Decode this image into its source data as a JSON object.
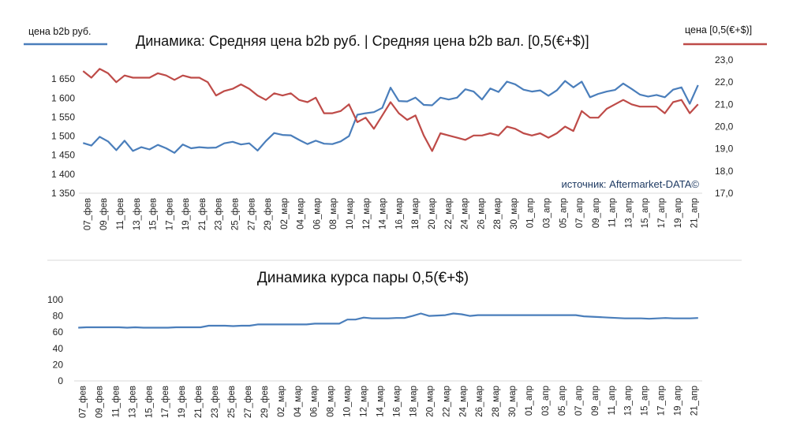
{
  "top": {
    "title": "Динамика: Средняя цена b2b руб.   | Средняя цена b2b вал. [0,5(€+$)]",
    "legend_left": "цена b2b руб.",
    "legend_right": "цена [0,5(€+$)]",
    "source": "источник: Aftermarket-DATA©"
  },
  "bottom": {
    "title": "Динамика курса пары 0,5(€+$)"
  },
  "colors": {
    "blue": "#4a7ebb",
    "red": "#be4b48",
    "axis": "#d9d9d9"
  },
  "chart_data": [
    {
      "type": "line",
      "title": "Динамика: Средняя цена b2b руб.   | Средняя цена b2b вал. [0,5(€+$)]",
      "x_tick_labels": [
        "07_фев",
        "09_фев",
        "11_фев",
        "13_фев",
        "15_фев",
        "17_фев",
        "19_фев",
        "21_фев",
        "23_фев",
        "25_фев",
        "27_фев",
        "29_фев",
        "02_мар",
        "04_мар",
        "06_мар",
        "08_мар",
        "10_мар",
        "12_мар",
        "14_мар",
        "16_мар",
        "18_мар",
        "20_мар",
        "22_мар",
        "24_мар",
        "26_мар",
        "28_мар",
        "30_мар",
        "01_апр",
        "03_апр",
        "05_апр",
        "07_апр",
        "09_апр",
        "11_апр",
        "13_апр",
        "15_апр",
        "17_апр",
        "19_апр",
        "21_апр"
      ],
      "y_left": {
        "ticks": [
          "1 350",
          "1 400",
          "1 450",
          "1 500",
          "1 550",
          "1 600",
          "1 650"
        ],
        "ylim": [
          1350,
          1700
        ]
      },
      "y_right": {
        "ticks": [
          "17,0",
          "18,0",
          "19,0",
          "20,0",
          "21,0",
          "22,0",
          "23,0"
        ],
        "ylim": [
          17,
          23
        ]
      },
      "series": [
        {
          "name": "цена b2b руб.",
          "axis": "left",
          "values": [
            1482,
            1475,
            1498,
            1486,
            1463,
            1488,
            1461,
            1471,
            1465,
            1477,
            1468,
            1456,
            1478,
            1468,
            1471,
            1469,
            1470,
            1481,
            1485,
            1478,
            1481,
            1462,
            1487,
            1508,
            1503,
            1502,
            1490,
            1479,
            1488,
            1480,
            1479,
            1486,
            1500,
            1556,
            1560,
            1563,
            1574,
            1627,
            1592,
            1591,
            1601,
            1582,
            1581,
            1601,
            1596,
            1601,
            1623,
            1617,
            1596,
            1625,
            1616,
            1643,
            1636,
            1622,
            1617,
            1620,
            1606,
            1620,
            1645,
            1628,
            1643,
            1602,
            1611,
            1617,
            1621,
            1638,
            1624,
            1609,
            1604,
            1608,
            1602,
            1622,
            1628,
            1585,
            1634
          ]
        },
        {
          "name": "цена [0,5(€+$)]",
          "axis": "right",
          "values": [
            22.5,
            22.2,
            22.6,
            22.4,
            22.0,
            22.3,
            22.2,
            22.2,
            22.2,
            22.4,
            22.3,
            22.1,
            22.3,
            22.2,
            22.2,
            22.0,
            21.4,
            21.6,
            21.7,
            21.9,
            21.7,
            21.4,
            21.2,
            21.5,
            21.4,
            21.5,
            21.2,
            21.1,
            21.3,
            20.6,
            20.6,
            20.7,
            21.0,
            20.2,
            20.4,
            19.9,
            20.5,
            21.1,
            20.6,
            20.3,
            20.5,
            19.6,
            18.9,
            19.7,
            19.6,
            19.5,
            19.4,
            19.6,
            19.6,
            19.7,
            19.6,
            20.0,
            19.9,
            19.7,
            19.6,
            19.7,
            19.5,
            19.7,
            20.0,
            19.8,
            20.7,
            20.4,
            20.4,
            20.8,
            21.0,
            21.2,
            21.0,
            20.9,
            20.9,
            20.9,
            20.6,
            21.1,
            21.2,
            20.6,
            21.0
          ]
        }
      ],
      "grid": false,
      "legend": "top-left and top-right",
      "annotation": "источник: Aftermarket-DATA©"
    },
    {
      "type": "line",
      "title": "Динамика курса пары 0,5(€+$)",
      "x_tick_labels": [
        "07_фев",
        "09_фев",
        "11_фев",
        "13_фев",
        "15_фев",
        "17_фев",
        "19_фев",
        "21_фев",
        "23_фев",
        "25_фев",
        "27_фев",
        "29_фев",
        "02_мар",
        "04_мар",
        "06_мар",
        "08_мар",
        "10_мар",
        "12_мар",
        "14_мар",
        "16_мар",
        "18_мар",
        "20_мар",
        "22_мар",
        "24_мар",
        "26_мар",
        "28_мар",
        "30_мар",
        "01_апр",
        "03_апр",
        "05_апр",
        "07_апр",
        "09_апр",
        "11_апр",
        "13_апр",
        "15_апр",
        "17_апр",
        "19_апр",
        "21_апр"
      ],
      "y": {
        "ticks": [
          "0",
          "20",
          "40",
          "60",
          "80",
          "100"
        ],
        "ylim": [
          0,
          100
        ]
      },
      "series": [
        {
          "name": "0,5(€+$)",
          "values": [
            65.5,
            66,
            66,
            66,
            66,
            66,
            65.5,
            66,
            65.5,
            65.5,
            65.5,
            65.5,
            66,
            66,
            66,
            66,
            68,
            68,
            68,
            67.5,
            68,
            68,
            69.5,
            69.5,
            69.5,
            69.5,
            69.5,
            69.5,
            69.5,
            70.5,
            70.5,
            70.5,
            70.5,
            75.5,
            75.5,
            78,
            77,
            77,
            77,
            77.5,
            77.5,
            80,
            83,
            80,
            80.5,
            81,
            83,
            82,
            80,
            81,
            81,
            81,
            81,
            81,
            81,
            81,
            81,
            81,
            81,
            81,
            81,
            81,
            79.5,
            79,
            78.5,
            78,
            77.5,
            77,
            77,
            77,
            76.5,
            77,
            77.5,
            77,
            77,
            77,
            77.5
          ]
        }
      ],
      "grid": false,
      "legend": "none"
    }
  ]
}
